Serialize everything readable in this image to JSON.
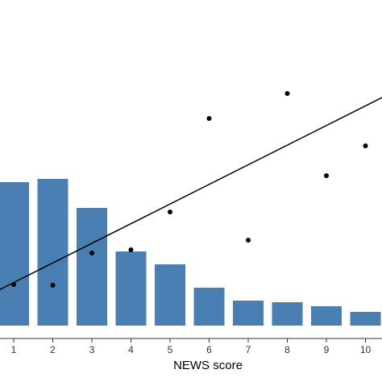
{
  "chart_data": {
    "type": "bar",
    "xlabel": "NEWS score",
    "ylabel": "",
    "title": "",
    "categories": [
      "1",
      "2",
      "3",
      "4",
      "5",
      "6",
      "7",
      "8",
      "9",
      "10"
    ],
    "series": [
      {
        "type": "bar",
        "values": [
          178,
          182,
          146,
          92,
          76,
          47,
          31,
          29,
          24,
          17
        ],
        "color": "#4a7fb3"
      },
      {
        "type": "scatter",
        "values": [
          51,
          50,
          90,
          94,
          141,
          257,
          106,
          288,
          186,
          223
        ],
        "color": "#000000"
      },
      {
        "type": "line",
        "fit": "linear",
        "start": {
          "x": 0,
          "y": 29
        },
        "end": {
          "x": 11,
          "y": 297
        },
        "color": "#000000"
      }
    ],
    "ylim": [
      0,
      400
    ],
    "grid": false,
    "legend": "none"
  }
}
